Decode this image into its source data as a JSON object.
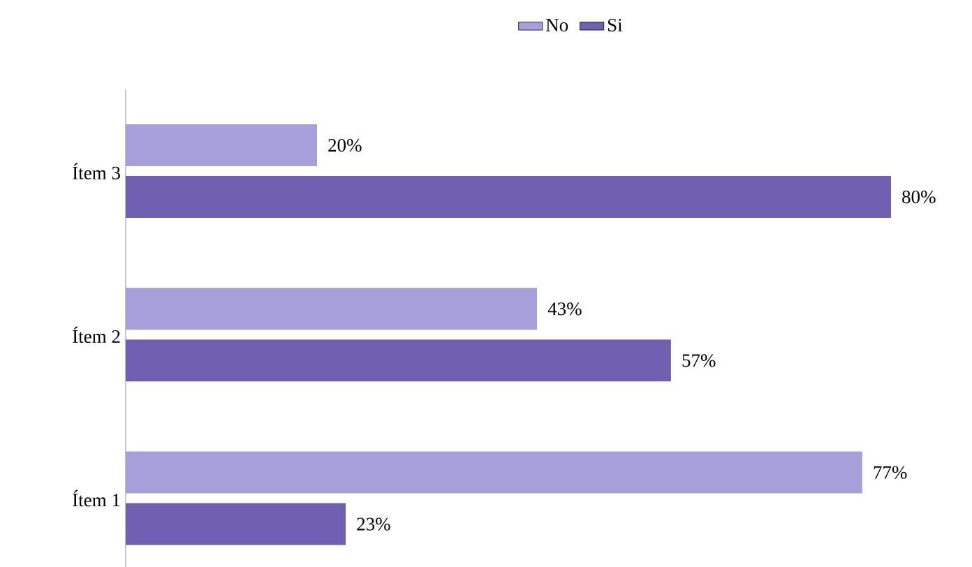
{
  "chart_data": {
    "type": "bar",
    "orientation": "horizontal",
    "categories": [
      "Ítem 3",
      "Ítem 2",
      "Ítem 1"
    ],
    "legend": "top",
    "series": [
      {
        "name": "No",
        "color": "#a79fd9",
        "values": [
          20,
          43,
          77
        ],
        "value_labels": [
          "20%",
          "43%",
          "77%"
        ]
      },
      {
        "name": "Si",
        "color": "#7060b2",
        "values": [
          80,
          57,
          23
        ],
        "value_labels": [
          "80%",
          "57%",
          "23%"
        ]
      }
    ]
  }
}
